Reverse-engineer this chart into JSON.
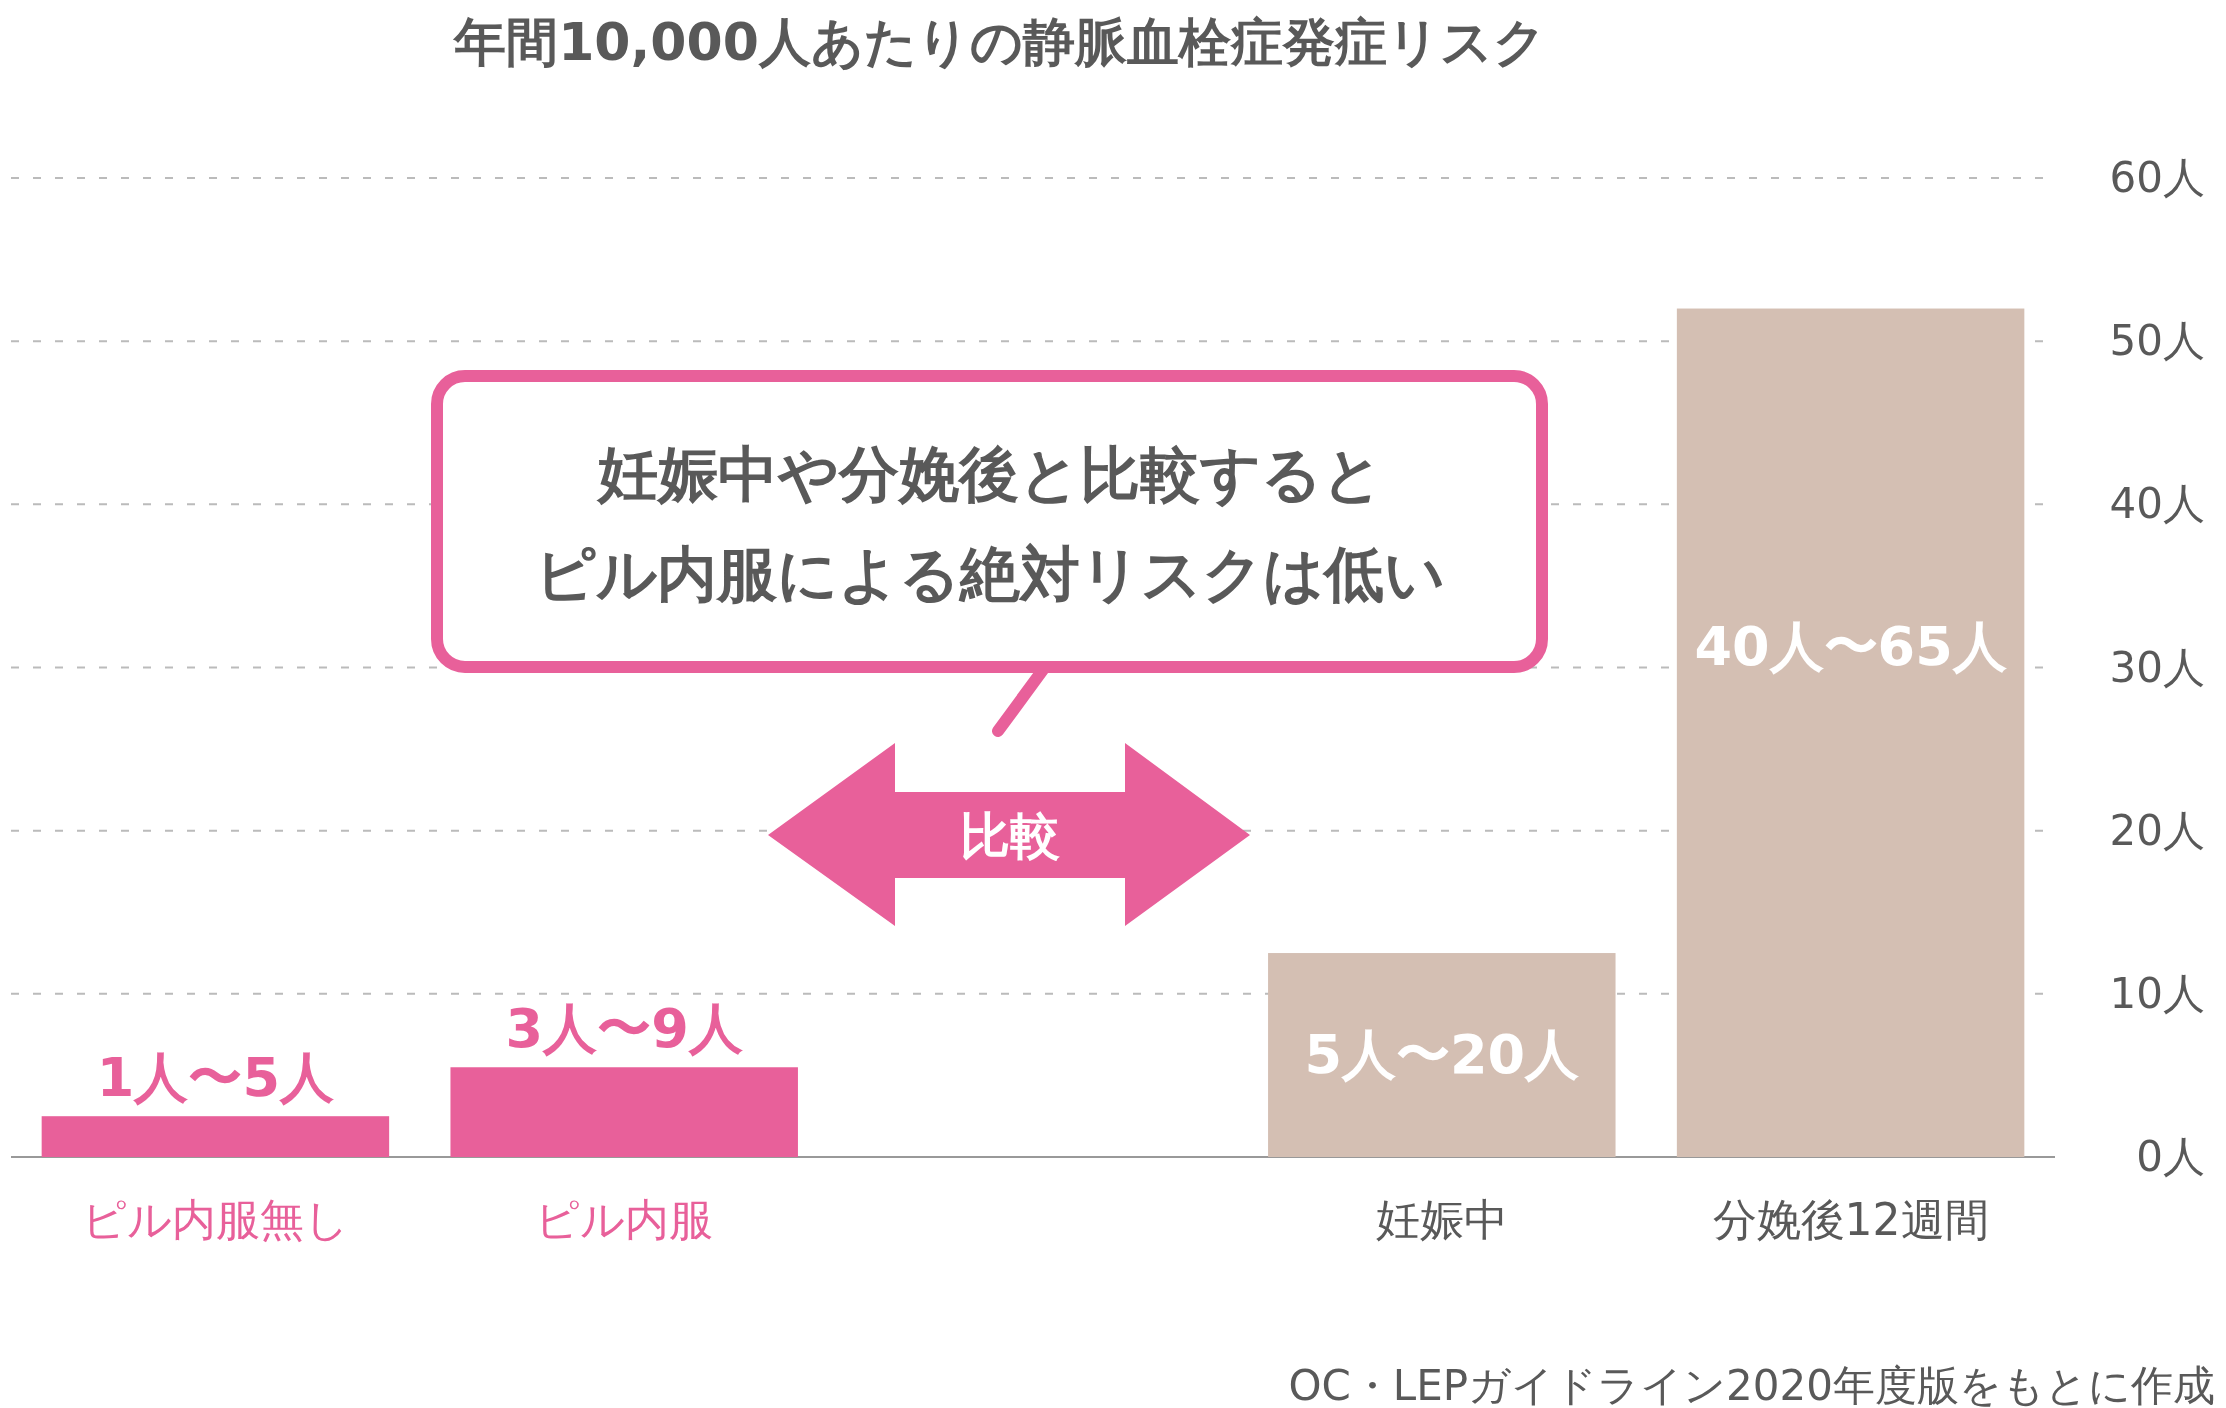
{
  "chart_data": {
    "type": "bar",
    "title": "年間10,000人あたりの静脈血栓症発症リスク",
    "categories": [
      "ピル内服無し",
      "ピル内服",
      null,
      "妊娠中",
      "分娩後12週間"
    ],
    "values": [
      2.5,
      5.5,
      null,
      12.5,
      52
    ],
    "colors": [
      "#e8609a",
      "#e8609a",
      "#e8609a",
      "#d4bfb3",
      "#d4bfb3"
    ],
    "ylim": [
      0,
      60
    ],
    "yticks": [
      {
        "value": 0,
        "label": "0人"
      },
      {
        "value": 10,
        "label": "10人"
      },
      {
        "value": 20,
        "label": "20人"
      },
      {
        "value": 30,
        "label": "30人"
      },
      {
        "value": 40,
        "label": "40人"
      },
      {
        "value": 50,
        "label": "50人"
      },
      {
        "value": 60,
        "label": "60人"
      }
    ],
    "grid": "y",
    "annotations": [
      "妊娠中や分娩後と比較すると",
      "ピル内服による絶対リスクは低い",
      "比較",
      "OC・LEPガイドライン2020年度版をもとに作成",
      "1人〜5人",
      "3人〜9人",
      "5人〜20人",
      "40人〜65人"
    ]
  }
}
